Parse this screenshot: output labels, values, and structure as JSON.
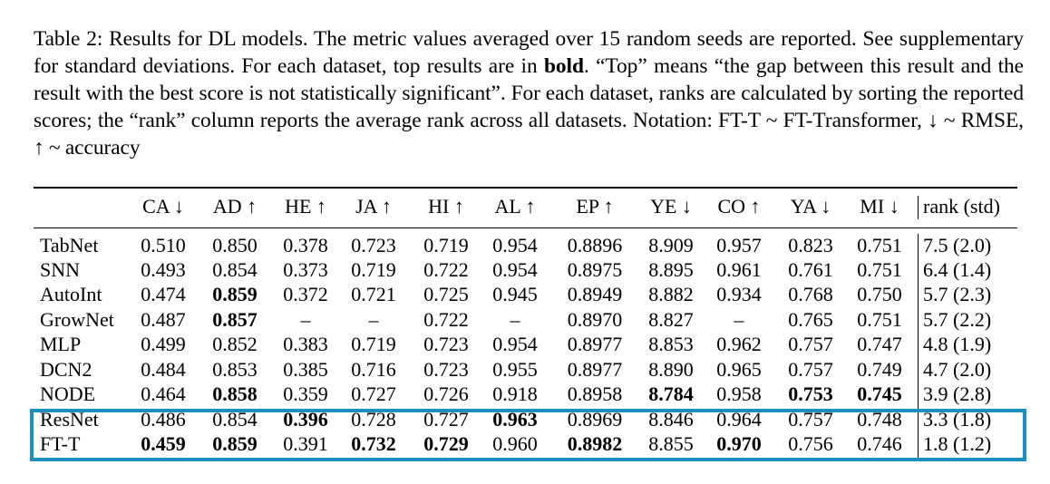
{
  "caption": {
    "p1": "Table 2: Results for DL models. The metric values averaged over 15 random seeds are reported. See supplementary for standard deviations. For each dataset, top results are in ",
    "bold": "bold",
    "p2": ". “Top” means “the gap between this result and the result with the best score is not statistically significant”. For each dataset, ranks are calculated by sorting the reported scores; the “rank” column reports the average rank across all datasets. Notation: FT-T ~ FT-Transformer, ↓ ~ RMSE, ↑ ~ accuracy"
  },
  "table": {
    "headers": [
      "CA ↓",
      "AD ↑",
      "HE ↑",
      "JA ↑",
      "HI ↑",
      "AL ↑",
      "EP ↑",
      "YE ↓",
      "CO ↑",
      "YA ↓",
      "MI ↓",
      "rank (std)"
    ],
    "rows": [
      {
        "model": "TabNet",
        "values": [
          "0.510",
          "0.850",
          "0.378",
          "0.723",
          "0.719",
          "0.954",
          "0.8896",
          "8.909",
          "0.957",
          "0.823",
          "0.751"
        ],
        "rank": "7.5 (2.0)",
        "bold": []
      },
      {
        "model": "SNN",
        "values": [
          "0.493",
          "0.854",
          "0.373",
          "0.719",
          "0.722",
          "0.954",
          "0.8975",
          "8.895",
          "0.961",
          "0.761",
          "0.751"
        ],
        "rank": "6.4 (1.4)",
        "bold": []
      },
      {
        "model": "AutoInt",
        "values": [
          "0.474",
          "0.859",
          "0.372",
          "0.721",
          "0.725",
          "0.945",
          "0.8949",
          "8.882",
          "0.934",
          "0.768",
          "0.750"
        ],
        "rank": "5.7 (2.3)",
        "bold": [
          1
        ]
      },
      {
        "model": "GrowNet",
        "values": [
          "0.487",
          "0.857",
          "–",
          "–",
          "0.722",
          "–",
          "0.8970",
          "8.827",
          "–",
          "0.765",
          "0.751"
        ],
        "rank": "5.7 (2.2)",
        "bold": [
          1
        ]
      },
      {
        "model": "MLP",
        "values": [
          "0.499",
          "0.852",
          "0.383",
          "0.719",
          "0.723",
          "0.954",
          "0.8977",
          "8.853",
          "0.962",
          "0.757",
          "0.747"
        ],
        "rank": "4.8 (1.9)",
        "bold": []
      },
      {
        "model": "DCN2",
        "values": [
          "0.484",
          "0.853",
          "0.385",
          "0.716",
          "0.723",
          "0.955",
          "0.8977",
          "8.890",
          "0.965",
          "0.757",
          "0.749"
        ],
        "rank": "4.7 (2.0)",
        "bold": []
      },
      {
        "model": "NODE",
        "values": [
          "0.464",
          "0.858",
          "0.359",
          "0.727",
          "0.726",
          "0.918",
          "0.8958",
          "8.784",
          "0.958",
          "0.753",
          "0.745"
        ],
        "rank": "3.9 (2.8)",
        "bold": [
          1,
          7,
          9,
          10
        ]
      },
      {
        "model": "ResNet",
        "values": [
          "0.486",
          "0.854",
          "0.396",
          "0.728",
          "0.727",
          "0.963",
          "0.8969",
          "8.846",
          "0.964",
          "0.757",
          "0.748"
        ],
        "rank": "3.3 (1.8)",
        "bold": [
          2,
          5
        ]
      },
      {
        "model": "FT-T",
        "values": [
          "0.459",
          "0.859",
          "0.391",
          "0.732",
          "0.729",
          "0.960",
          "0.8982",
          "8.855",
          "0.970",
          "0.756",
          "0.746"
        ],
        "rank": "1.8 (1.2)",
        "bold": [
          0,
          1,
          3,
          4,
          6,
          8
        ]
      }
    ],
    "highlighted_rows": [
      "ResNet",
      "FT-T"
    ],
    "highlight_color": "#1a8fc2"
  }
}
